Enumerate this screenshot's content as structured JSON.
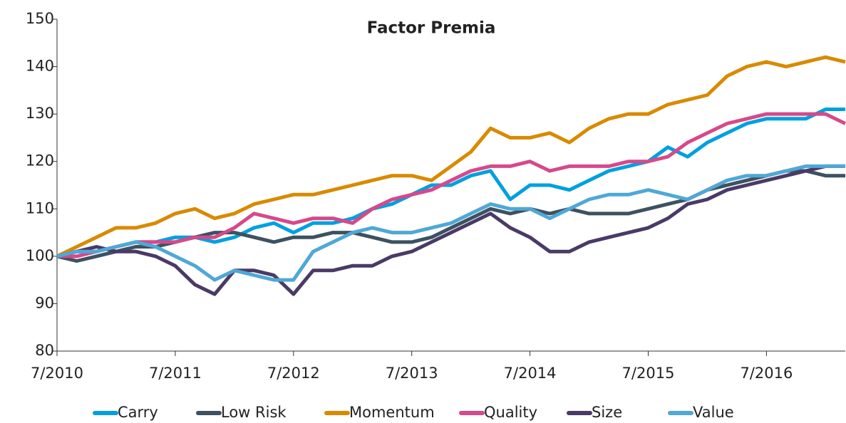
{
  "chart_data": {
    "type": "line",
    "title": "Factor Premia",
    "x": [
      "7/2010",
      "9/2010",
      "11/2010",
      "1/2011",
      "3/2011",
      "5/2011",
      "7/2011",
      "9/2011",
      "11/2011",
      "1/2012",
      "3/2012",
      "5/2012",
      "7/2012",
      "9/2012",
      "11/2012",
      "1/2013",
      "3/2013",
      "5/2013",
      "7/2013",
      "9/2013",
      "11/2013",
      "1/2014",
      "3/2014",
      "5/2014",
      "7/2014",
      "9/2014",
      "11/2014",
      "1/2015",
      "3/2015",
      "5/2015",
      "7/2015",
      "9/2015",
      "11/2015",
      "1/2016",
      "3/2016",
      "5/2016",
      "7/2016",
      "9/2016",
      "11/2016",
      "1/2017",
      "3/2017"
    ],
    "xlim": [
      "7/2010",
      "3/2017"
    ],
    "xticks": [
      "7/2010",
      "7/2011",
      "7/2012",
      "7/2013",
      "7/2014",
      "7/2015",
      "7/2016"
    ],
    "ylim": [
      80,
      150
    ],
    "yticks": [
      80,
      90,
      100,
      110,
      120,
      130,
      140,
      150
    ],
    "grid": false,
    "legend": "bottom",
    "series": [
      {
        "name": "Carry",
        "color": "#00a0df",
        "values": [
          100,
          101,
          101,
          102,
          103,
          103,
          104,
          104,
          103,
          104,
          106,
          107,
          105,
          107,
          107,
          108,
          110,
          111,
          113,
          115,
          115,
          117,
          118,
          112,
          115,
          115,
          114,
          116,
          118,
          119,
          120,
          123,
          121,
          124,
          126,
          128,
          129,
          129,
          129,
          131,
          131
        ]
      },
      {
        "name": "Low Risk",
        "color": "#3d5161",
        "values": [
          100,
          99,
          100,
          101,
          102,
          102,
          103,
          104,
          105,
          105,
          104,
          103,
          104,
          104,
          105,
          105,
          104,
          103,
          103,
          104,
          106,
          108,
          110,
          109,
          110,
          109,
          110,
          109,
          109,
          109,
          110,
          111,
          112,
          114,
          115,
          116,
          117,
          118,
          118,
          117,
          117
        ]
      },
      {
        "name": "Momentum",
        "color": "#d98a00",
        "values": [
          100,
          102,
          104,
          106,
          106,
          107,
          109,
          110,
          108,
          109,
          111,
          112,
          113,
          113,
          114,
          115,
          116,
          117,
          117,
          116,
          119,
          122,
          127,
          125,
          125,
          126,
          124,
          127,
          129,
          130,
          130,
          132,
          133,
          134,
          138,
          140,
          141,
          140,
          141,
          142,
          141
        ]
      },
      {
        "name": "Quality",
        "color": "#d6498a",
        "values": [
          100,
          100,
          101,
          102,
          103,
          103,
          103,
          104,
          104,
          106,
          109,
          108,
          107,
          108,
          108,
          107,
          110,
          112,
          113,
          114,
          116,
          118,
          119,
          119,
          120,
          118,
          119,
          119,
          119,
          120,
          120,
          121,
          124,
          126,
          128,
          129,
          130,
          130,
          130,
          130,
          128
        ]
      },
      {
        "name": "Size",
        "color": "#4a3a66",
        "values": [
          100,
          101,
          102,
          101,
          101,
          100,
          98,
          94,
          92,
          97,
          97,
          96,
          92,
          97,
          97,
          98,
          98,
          100,
          101,
          103,
          105,
          107,
          109,
          106,
          104,
          101,
          101,
          103,
          104,
          105,
          106,
          108,
          111,
          112,
          114,
          115,
          116,
          117,
          118,
          119,
          119
        ]
      },
      {
        "name": "Value",
        "color": "#4fa8d6",
        "values": [
          100,
          101,
          101,
          102,
          103,
          102,
          100,
          98,
          95,
          97,
          96,
          95,
          95,
          101,
          103,
          105,
          106,
          105,
          105,
          106,
          107,
          109,
          111,
          110,
          110,
          108,
          110,
          112,
          113,
          113,
          114,
          113,
          112,
          114,
          116,
          117,
          117,
          118,
          119,
          119,
          119
        ]
      }
    ]
  }
}
